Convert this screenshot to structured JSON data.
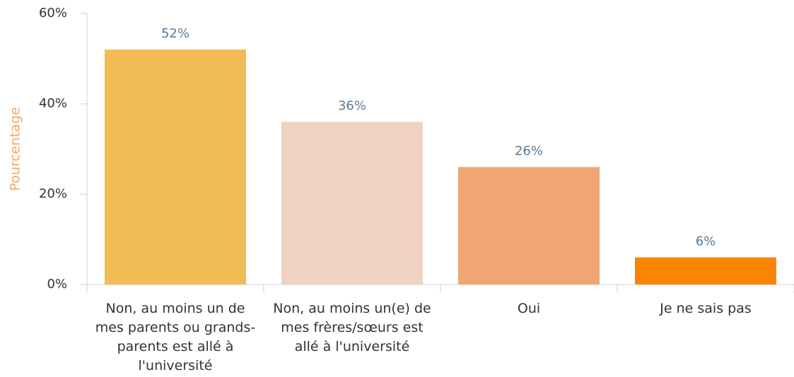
{
  "chart_data": {
    "type": "bar",
    "y_label": "Pourcentage",
    "categories": [
      "Non, au moins un de mes parents ou grands-parents est allé à l'université",
      "Non, au moins un(e) de mes frères/sœurs est allé à l'université",
      "Oui",
      "Je ne sais pas"
    ],
    "values": [
      52,
      36,
      26,
      6
    ],
    "value_labels": [
      "52%",
      "36%",
      "26%",
      "6%"
    ],
    "colors": [
      "#f2bc55",
      "#f0d2c2",
      "#f0a672",
      "#fb8500"
    ],
    "ylim": [
      0,
      60
    ],
    "yticks": [
      {
        "value": 0,
        "label": "0%"
      },
      {
        "value": 20,
        "label": "20%"
      },
      {
        "value": 40,
        "label": "40%"
      },
      {
        "value": 60,
        "label": "60%"
      }
    ],
    "grid": false
  }
}
